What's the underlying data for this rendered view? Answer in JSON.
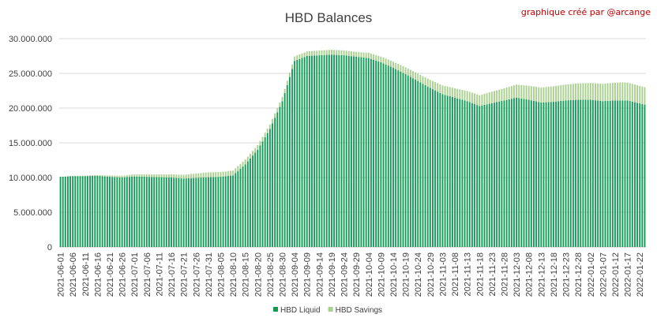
{
  "credit": "graphique créé par @arcange",
  "colors": {
    "liquid": "#119c55",
    "savings": "#a9d08e",
    "grid": "#d9d9d9",
    "axis_text": "#404040",
    "credit": "#c00000"
  },
  "chart_data": {
    "type": "bar",
    "stacked": true,
    "title": "HBD Balances",
    "xlabel": "",
    "ylabel": "",
    "ylim": [
      0,
      30000000
    ],
    "yticks": [
      0,
      5000000,
      10000000,
      15000000,
      20000000,
      25000000,
      30000000
    ],
    "ytick_labels": [
      "0",
      "5.000.000",
      "10.000.000",
      "15.000.000",
      "20.000.000",
      "25.000.000",
      "30.000.000"
    ],
    "grid": "horizontal",
    "legend_position": "bottom",
    "x_start": "2021-06-01",
    "x_end": "2022-01-24",
    "x_tick_labels": [
      "2021-06-01",
      "2021-06-06",
      "2021-06-11",
      "2021-06-16",
      "2021-06-21",
      "2021-06-26",
      "2021-07-01",
      "2021-07-06",
      "2021-07-11",
      "2021-07-16",
      "2021-07-21",
      "2021-07-26",
      "2021-07-31",
      "2021-08-05",
      "2021-08-10",
      "2021-08-15",
      "2021-08-20",
      "2021-08-25",
      "2021-08-30",
      "2021-09-04",
      "2021-09-09",
      "2021-09-14",
      "2021-09-19",
      "2021-09-24",
      "2021-09-29",
      "2021-10-04",
      "2021-10-09",
      "2021-10-14",
      "2021-10-19",
      "2021-10-24",
      "2021-10-29",
      "2021-11-03",
      "2021-11-08",
      "2021-11-13",
      "2021-11-18",
      "2021-11-23",
      "2021-11-28",
      "2021-12-03",
      "2021-12-08",
      "2021-12-13",
      "2021-12-18",
      "2021-12-23",
      "2021-12-28",
      "2022-01-02",
      "2022-01-07",
      "2022-01-12",
      "2022-01-17",
      "2022-01-22"
    ],
    "series": [
      {
        "name": "HBD Liquid",
        "color": "#119c55",
        "points": [
          [
            "2021-06-01",
            10100000
          ],
          [
            "2021-06-06",
            10200000
          ],
          [
            "2021-06-11",
            10200000
          ],
          [
            "2021-06-16",
            10250000
          ],
          [
            "2021-06-21",
            10100000
          ],
          [
            "2021-06-26",
            10000000
          ],
          [
            "2021-07-01",
            10150000
          ],
          [
            "2021-07-06",
            10100000
          ],
          [
            "2021-07-11",
            10050000
          ],
          [
            "2021-07-16",
            10000000
          ],
          [
            "2021-07-21",
            9850000
          ],
          [
            "2021-07-26",
            9950000
          ],
          [
            "2021-07-31",
            10050000
          ],
          [
            "2021-08-05",
            10100000
          ],
          [
            "2021-08-10",
            10300000
          ],
          [
            "2021-08-15",
            11900000
          ],
          [
            "2021-08-20",
            14000000
          ],
          [
            "2021-08-25",
            17000000
          ],
          [
            "2021-08-30",
            21000000
          ],
          [
            "2021-09-04",
            26800000
          ],
          [
            "2021-09-09",
            27500000
          ],
          [
            "2021-09-14",
            27600000
          ],
          [
            "2021-09-19",
            27700000
          ],
          [
            "2021-09-24",
            27600000
          ],
          [
            "2021-09-29",
            27400000
          ],
          [
            "2021-10-04",
            27200000
          ],
          [
            "2021-10-09",
            26600000
          ],
          [
            "2021-10-14",
            25800000
          ],
          [
            "2021-10-19",
            24900000
          ],
          [
            "2021-10-24",
            23900000
          ],
          [
            "2021-10-29",
            22900000
          ],
          [
            "2021-11-03",
            22000000
          ],
          [
            "2021-11-08",
            21500000
          ],
          [
            "2021-11-13",
            21000000
          ],
          [
            "2021-11-18",
            20300000
          ],
          [
            "2021-11-23",
            20700000
          ],
          [
            "2021-11-28",
            21100000
          ],
          [
            "2021-12-03",
            21500000
          ],
          [
            "2021-12-08",
            21200000
          ],
          [
            "2021-12-13",
            20800000
          ],
          [
            "2021-12-18",
            20900000
          ],
          [
            "2021-12-23",
            21100000
          ],
          [
            "2021-12-28",
            21200000
          ],
          [
            "2022-01-02",
            21200000
          ],
          [
            "2022-01-07",
            21000000
          ],
          [
            "2022-01-12",
            21100000
          ],
          [
            "2022-01-17",
            21100000
          ],
          [
            "2022-01-24",
            20500000
          ]
        ]
      },
      {
        "name": "HBD Savings",
        "color": "#a9d08e",
        "points": [
          [
            "2021-06-01",
            0
          ],
          [
            "2021-06-15",
            100000
          ],
          [
            "2021-06-30",
            300000
          ],
          [
            "2021-07-15",
            450000
          ],
          [
            "2021-07-31",
            700000
          ],
          [
            "2021-08-15",
            700000
          ],
          [
            "2021-08-30",
            600000
          ],
          [
            "2021-09-15",
            700000
          ],
          [
            "2021-09-30",
            700000
          ],
          [
            "2021-10-15",
            900000
          ],
          [
            "2021-10-31",
            1200000
          ],
          [
            "2021-11-15",
            1500000
          ],
          [
            "2021-11-30",
            1800000
          ],
          [
            "2021-12-15",
            2200000
          ],
          [
            "2021-12-31",
            2400000
          ],
          [
            "2022-01-15",
            2600000
          ],
          [
            "2022-01-24",
            2500000
          ]
        ]
      }
    ]
  }
}
